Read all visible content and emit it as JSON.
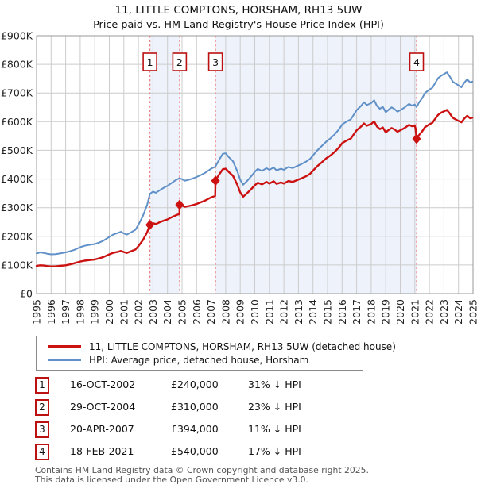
{
  "chart_data": {
    "type": "line",
    "title": "11, LITTLE COMPTONS, HORSHAM, RH13 5UW",
    "subtitle": "Price paid vs. HM Land Registry's House Price Index (HPI)",
    "x_range": [
      1995,
      2025
    ],
    "y_range_k": [
      0,
      900
    ],
    "grid": true,
    "x_ticks": [
      "1995",
      "1996",
      "1997",
      "1998",
      "1999",
      "2000",
      "2001",
      "2002",
      "2003",
      "2004",
      "2005",
      "2006",
      "2007",
      "2008",
      "2009",
      "2010",
      "2011",
      "2012",
      "2013",
      "2014",
      "2015",
      "2016",
      "2017",
      "2018",
      "2019",
      "2020",
      "2021",
      "2022",
      "2023",
      "2024",
      "2025"
    ],
    "y_ticks": [
      {
        "v": 0,
        "label": "£0"
      },
      {
        "v": 100,
        "label": "£100K"
      },
      {
        "v": 200,
        "label": "£200K"
      },
      {
        "v": 300,
        "label": "£300K"
      },
      {
        "v": 400,
        "label": "£400K"
      },
      {
        "v": 500,
        "label": "£500K"
      },
      {
        "v": 600,
        "label": "£600K"
      },
      {
        "v": 700,
        "label": "£700K"
      },
      {
        "v": 800,
        "label": "£800K"
      },
      {
        "v": 900,
        "label": "£900K"
      }
    ],
    "colors": {
      "price": "#cc1111",
      "hpi": "#6090c8",
      "band": "#edf2fb",
      "grid": "#cccccc",
      "frame": "#999999",
      "event_line": "#f08080",
      "event_box_border": "#bb1111"
    },
    "legend": {
      "items": [
        {
          "label": "11, LITTLE COMPTONS, HORSHAM, RH13 5UW (detached house)",
          "series": "price"
        },
        {
          "label": "HPI: Average price, detached house, Horsham",
          "series": "hpi"
        }
      ]
    },
    "bands": [
      [
        2002.79,
        2004.83
      ],
      [
        2007.3,
        2021.12
      ]
    ],
    "events": [
      {
        "num": 1,
        "date": "16-OCT-2002",
        "price": "£240,000",
        "hpi_diff": "31% ↓ HPI",
        "year": 2002.79,
        "value_k": 240
      },
      {
        "num": 2,
        "date": "29-OCT-2004",
        "price": "£310,000",
        "hpi_diff": "23% ↓ HPI",
        "year": 2004.83,
        "value_k": 310
      },
      {
        "num": 3,
        "date": "20-APR-2007",
        "price": "£394,000",
        "hpi_diff": "11% ↓ HPI",
        "year": 2007.3,
        "value_k": 394
      },
      {
        "num": 4,
        "date": "18-FEB-2021",
        "price": "£540,000",
        "hpi_diff": "17% ↓ HPI",
        "year": 2021.12,
        "value_k": 540
      }
    ],
    "series": [
      {
        "id": "hpi",
        "name": "HPI: Average price, detached house, Horsham",
        "points": [
          [
            1995.0,
            140
          ],
          [
            1995.25,
            144
          ],
          [
            1995.5,
            142
          ],
          [
            1995.75,
            139
          ],
          [
            1996.0,
            137
          ],
          [
            1996.3,
            138
          ],
          [
            1996.6,
            140
          ],
          [
            1997.0,
            144
          ],
          [
            1997.3,
            148
          ],
          [
            1997.6,
            153
          ],
          [
            1998.0,
            162
          ],
          [
            1998.3,
            167
          ],
          [
            1998.6,
            170
          ],
          [
            1999.0,
            173
          ],
          [
            1999.3,
            178
          ],
          [
            1999.6,
            185
          ],
          [
            2000.0,
            198
          ],
          [
            2000.3,
            207
          ],
          [
            2000.6,
            212
          ],
          [
            2000.8,
            216
          ],
          [
            2001.0,
            210
          ],
          [
            2001.2,
            206
          ],
          [
            2001.5,
            214
          ],
          [
            2001.8,
            223
          ],
          [
            2002.0,
            240
          ],
          [
            2002.3,
            270
          ],
          [
            2002.6,
            310
          ],
          [
            2002.79,
            348
          ],
          [
            2003.0,
            356
          ],
          [
            2003.2,
            352
          ],
          [
            2003.5,
            362
          ],
          [
            2003.8,
            371
          ],
          [
            2004.0,
            376
          ],
          [
            2004.3,
            387
          ],
          [
            2004.6,
            397
          ],
          [
            2004.83,
            403
          ],
          [
            2005.0,
            399
          ],
          [
            2005.2,
            394
          ],
          [
            2005.5,
            398
          ],
          [
            2005.8,
            403
          ],
          [
            2006.0,
            407
          ],
          [
            2006.3,
            414
          ],
          [
            2006.6,
            422
          ],
          [
            2007.0,
            436
          ],
          [
            2007.29,
            443
          ],
          [
            2007.5,
            463
          ],
          [
            2007.8,
            488
          ],
          [
            2008.0,
            490
          ],
          [
            2008.2,
            477
          ],
          [
            2008.5,
            462
          ],
          [
            2008.8,
            427
          ],
          [
            2009.0,
            397
          ],
          [
            2009.2,
            380
          ],
          [
            2009.5,
            395
          ],
          [
            2009.8,
            412
          ],
          [
            2010.0,
            425
          ],
          [
            2010.2,
            435
          ],
          [
            2010.5,
            428
          ],
          [
            2010.8,
            438
          ],
          [
            2011.0,
            432
          ],
          [
            2011.3,
            440
          ],
          [
            2011.5,
            430
          ],
          [
            2011.8,
            436
          ],
          [
            2012.0,
            432
          ],
          [
            2012.3,
            442
          ],
          [
            2012.6,
            438
          ],
          [
            2012.9,
            445
          ],
          [
            2013.2,
            452
          ],
          [
            2013.5,
            460
          ],
          [
            2013.8,
            470
          ],
          [
            2014.0,
            482
          ],
          [
            2014.3,
            500
          ],
          [
            2014.6,
            515
          ],
          [
            2014.9,
            530
          ],
          [
            2015.2,
            542
          ],
          [
            2015.5,
            556
          ],
          [
            2015.8,
            574
          ],
          [
            2016.0,
            590
          ],
          [
            2016.3,
            600
          ],
          [
            2016.6,
            608
          ],
          [
            2017.0,
            640
          ],
          [
            2017.3,
            655
          ],
          [
            2017.5,
            668
          ],
          [
            2017.7,
            658
          ],
          [
            2018.0,
            665
          ],
          [
            2018.2,
            675
          ],
          [
            2018.4,
            655
          ],
          [
            2018.6,
            645
          ],
          [
            2018.8,
            652
          ],
          [
            2019.0,
            633
          ],
          [
            2019.2,
            642
          ],
          [
            2019.4,
            650
          ],
          [
            2019.6,
            644
          ],
          [
            2019.8,
            635
          ],
          [
            2020.0,
            640
          ],
          [
            2020.3,
            650
          ],
          [
            2020.6,
            662
          ],
          [
            2020.8,
            656
          ],
          [
            2021.0,
            660
          ],
          [
            2021.12,
            651
          ],
          [
            2021.3,
            668
          ],
          [
            2021.5,
            682
          ],
          [
            2021.7,
            700
          ],
          [
            2022.0,
            712
          ],
          [
            2022.2,
            718
          ],
          [
            2022.4,
            735
          ],
          [
            2022.6,
            752
          ],
          [
            2022.8,
            760
          ],
          [
            2023.0,
            766
          ],
          [
            2023.2,
            772
          ],
          [
            2023.4,
            758
          ],
          [
            2023.6,
            740
          ],
          [
            2023.8,
            733
          ],
          [
            2024.0,
            727
          ],
          [
            2024.2,
            720
          ],
          [
            2024.4,
            736
          ],
          [
            2024.6,
            748
          ],
          [
            2024.8,
            737
          ],
          [
            2024.95,
            740
          ]
        ]
      },
      {
        "id": "price",
        "name": "11, LITTLE COMPTONS, HORSHAM, RH13 5UW (detached house)",
        "points": [
          [
            1995.0,
            97
          ],
          [
            1995.25,
            99
          ],
          [
            1995.5,
            98
          ],
          [
            1995.75,
            96
          ],
          [
            1996.0,
            95
          ],
          [
            1996.3,
            95
          ],
          [
            1996.6,
            97
          ],
          [
            1997.0,
            99
          ],
          [
            1997.3,
            102
          ],
          [
            1997.6,
            106
          ],
          [
            1998.0,
            112
          ],
          [
            1998.3,
            115
          ],
          [
            1998.6,
            117
          ],
          [
            1999.0,
            119
          ],
          [
            1999.3,
            123
          ],
          [
            1999.6,
            128
          ],
          [
            2000.0,
            137
          ],
          [
            2000.3,
            143
          ],
          [
            2000.6,
            146
          ],
          [
            2000.8,
            149
          ],
          [
            2001.0,
            145
          ],
          [
            2001.2,
            142
          ],
          [
            2001.5,
            148
          ],
          [
            2001.8,
            154
          ],
          [
            2002.0,
            166
          ],
          [
            2002.3,
            186
          ],
          [
            2002.6,
            214
          ],
          [
            2002.79,
            240
          ],
          [
            2003.0,
            246
          ],
          [
            2003.2,
            243
          ],
          [
            2003.5,
            250
          ],
          [
            2003.8,
            256
          ],
          [
            2004.0,
            259
          ],
          [
            2004.3,
            267
          ],
          [
            2004.6,
            274
          ],
          [
            2004.82,
            278
          ],
          [
            2004.84,
            310
          ],
          [
            2005.0,
            307
          ],
          [
            2005.2,
            303
          ],
          [
            2005.5,
            306
          ],
          [
            2005.8,
            310
          ],
          [
            2006.0,
            313
          ],
          [
            2006.3,
            319
          ],
          [
            2006.6,
            325
          ],
          [
            2007.0,
            336
          ],
          [
            2007.28,
            341
          ],
          [
            2007.3,
            394
          ],
          [
            2007.5,
            412
          ],
          [
            2007.8,
            434
          ],
          [
            2008.0,
            436
          ],
          [
            2008.2,
            425
          ],
          [
            2008.5,
            411
          ],
          [
            2008.8,
            380
          ],
          [
            2009.0,
            353
          ],
          [
            2009.2,
            338
          ],
          [
            2009.5,
            352
          ],
          [
            2009.8,
            367
          ],
          [
            2010.0,
            378
          ],
          [
            2010.2,
            387
          ],
          [
            2010.5,
            381
          ],
          [
            2010.8,
            390
          ],
          [
            2011.0,
            384
          ],
          [
            2011.3,
            392
          ],
          [
            2011.5,
            383
          ],
          [
            2011.8,
            388
          ],
          [
            2012.0,
            384
          ],
          [
            2012.3,
            393
          ],
          [
            2012.6,
            390
          ],
          [
            2012.9,
            396
          ],
          [
            2013.2,
            402
          ],
          [
            2013.5,
            409
          ],
          [
            2013.8,
            418
          ],
          [
            2014.0,
            429
          ],
          [
            2014.3,
            445
          ],
          [
            2014.6,
            458
          ],
          [
            2014.9,
            472
          ],
          [
            2015.2,
            482
          ],
          [
            2015.5,
            495
          ],
          [
            2015.8,
            511
          ],
          [
            2016.0,
            525
          ],
          [
            2016.3,
            534
          ],
          [
            2016.6,
            541
          ],
          [
            2017.0,
            570
          ],
          [
            2017.3,
            583
          ],
          [
            2017.5,
            594
          ],
          [
            2017.7,
            586
          ],
          [
            2018.0,
            592
          ],
          [
            2018.2,
            601
          ],
          [
            2018.4,
            583
          ],
          [
            2018.6,
            574
          ],
          [
            2018.8,
            580
          ],
          [
            2019.0,
            563
          ],
          [
            2019.2,
            571
          ],
          [
            2019.4,
            578
          ],
          [
            2019.6,
            573
          ],
          [
            2019.8,
            565
          ],
          [
            2020.0,
            570
          ],
          [
            2020.3,
            578
          ],
          [
            2020.6,
            589
          ],
          [
            2020.8,
            584
          ],
          [
            2021.0,
            587
          ],
          [
            2021.05,
            575
          ],
          [
            2021.12,
            540
          ],
          [
            2021.3,
            554
          ],
          [
            2021.5,
            566
          ],
          [
            2021.7,
            581
          ],
          [
            2022.0,
            591
          ],
          [
            2022.2,
            596
          ],
          [
            2022.4,
            610
          ],
          [
            2022.6,
            624
          ],
          [
            2022.8,
            631
          ],
          [
            2023.0,
            636
          ],
          [
            2023.2,
            641
          ],
          [
            2023.4,
            629
          ],
          [
            2023.6,
            614
          ],
          [
            2023.8,
            608
          ],
          [
            2024.0,
            603
          ],
          [
            2024.2,
            598
          ],
          [
            2024.4,
            611
          ],
          [
            2024.6,
            621
          ],
          [
            2024.8,
            612
          ],
          [
            2024.95,
            614
          ]
        ]
      }
    ]
  },
  "footer": {
    "line1": "Contains HM Land Registry data © Crown copyright and database right 2025.",
    "line2": "This data is licensed under the Open Government Licence v3.0."
  }
}
